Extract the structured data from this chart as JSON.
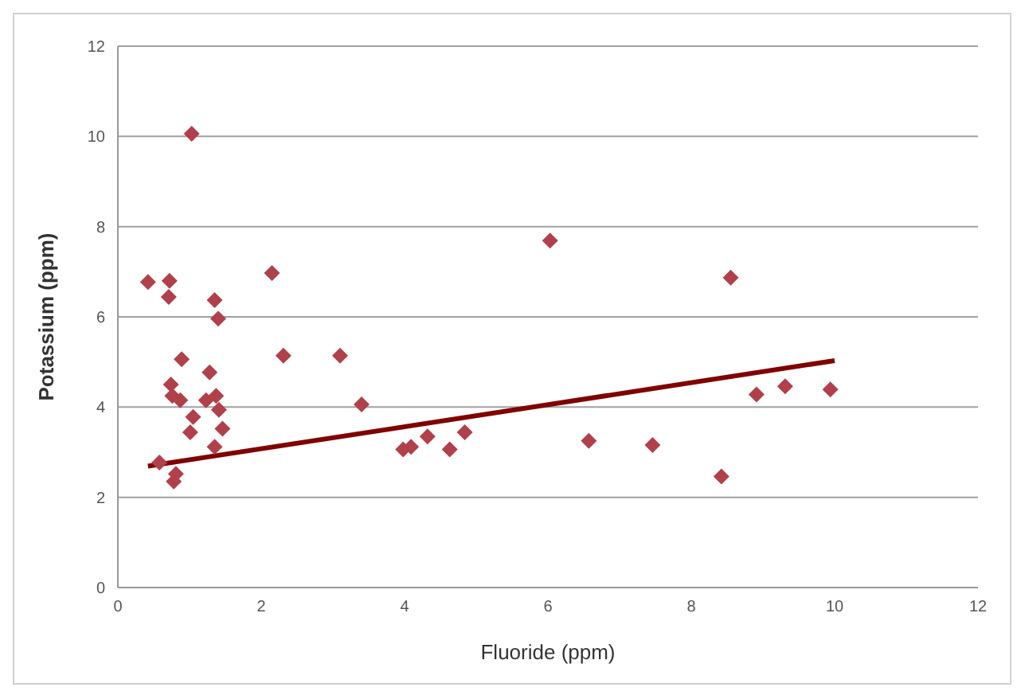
{
  "chart_data": {
    "type": "scatter",
    "xlabel": "Fluoride (ppm)",
    "ylabel": "Potassium (ppm)",
    "xlim": [
      0,
      12
    ],
    "xticks": [
      0,
      2,
      4,
      6,
      8,
      10,
      12
    ],
    "ylim": [
      0,
      12
    ],
    "yticks": [
      0,
      2,
      4,
      6,
      8,
      10,
      12
    ],
    "grid": "y",
    "marker": "diamond",
    "series": [
      {
        "color": "#b0404a",
        "x": [
          0.42,
          0.72,
          0.71,
          1.03,
          0.89,
          0.74,
          0.76,
          0.87,
          1.05,
          1.01,
          0.58,
          0.81,
          0.78,
          1.35,
          1.4,
          1.28,
          1.23,
          1.37,
          1.41,
          1.46,
          1.35,
          2.15,
          2.31,
          3.1,
          3.4,
          3.98,
          4.09,
          4.32,
          4.63,
          4.84,
          6.03,
          6.57,
          7.46,
          8.42,
          8.55,
          8.91,
          9.31,
          9.94
        ],
        "values": [
          6.77,
          6.8,
          6.44,
          10.06,
          5.06,
          4.5,
          4.25,
          4.15,
          3.78,
          3.44,
          2.77,
          2.52,
          2.35,
          6.37,
          5.96,
          4.77,
          4.15,
          4.25,
          3.94,
          3.52,
          3.12,
          6.97,
          5.14,
          5.14,
          4.06,
          3.06,
          3.12,
          3.35,
          3.06,
          3.44,
          7.69,
          3.25,
          3.16,
          2.46,
          6.87,
          4.28,
          4.46,
          4.39
        ]
      },
      {
        "type": "line",
        "color": "#800000",
        "marker": "none",
        "line_style": "solid",
        "x": [
          0.42,
          10.0
        ],
        "values": [
          2.69,
          5.03
        ]
      }
    ]
  }
}
